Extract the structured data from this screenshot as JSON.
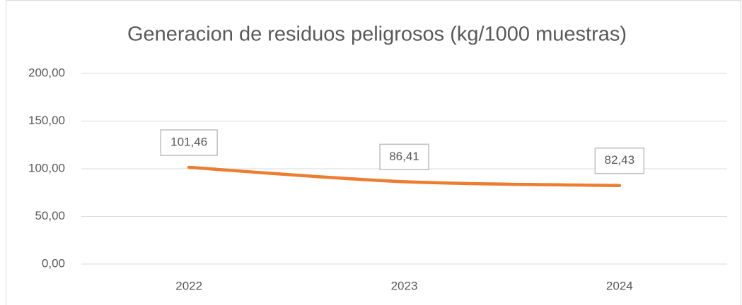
{
  "chart_data": {
    "type": "line",
    "title": "Generacion de residuos peligrosos (kg/1000 muestras)",
    "categories": [
      "2022",
      "2023",
      "2024"
    ],
    "values": [
      101.46,
      86.41,
      82.43
    ],
    "value_labels": [
      "101,46",
      "86,41",
      "82,43"
    ],
    "color": "#ed7d31",
    "ylim": [
      0,
      200
    ],
    "yticks": [
      {
        "value": 0,
        "label": "0,00"
      },
      {
        "value": 50,
        "label": "50,00"
      },
      {
        "value": 100,
        "label": "100,00"
      },
      {
        "value": 150,
        "label": "150,00"
      },
      {
        "value": 200,
        "label": "200,00"
      }
    ],
    "grid": true
  }
}
